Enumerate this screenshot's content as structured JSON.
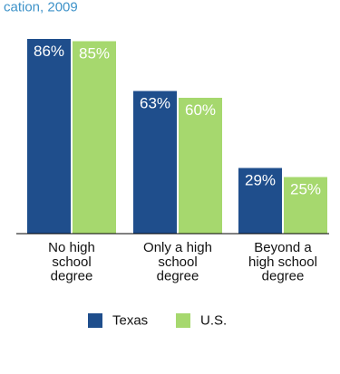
{
  "chart_data": {
    "type": "bar",
    "title_fragment": "cation, 2009",
    "categories": [
      [
        "No high",
        "school",
        "degree"
      ],
      [
        "Only a high",
        "school",
        "degree"
      ],
      [
        "Beyond a",
        "high school",
        "degree"
      ]
    ],
    "series": [
      {
        "name": "Texas",
        "color": "#1f4e8c",
        "values": [
          86,
          63,
          29
        ],
        "labels": [
          "86%",
          "63%",
          "29%"
        ]
      },
      {
        "name": "U.S.",
        "color": "#a6d86e",
        "values": [
          85,
          60,
          25
        ],
        "labels": [
          "85%",
          "60%",
          "25%"
        ]
      }
    ],
    "ylim": [
      0,
      100
    ],
    "grid": false,
    "legend_position": "bottom",
    "colors": {
      "title": "#3f93c9",
      "axis": "#000000",
      "bar_label": "#ffffff"
    }
  }
}
